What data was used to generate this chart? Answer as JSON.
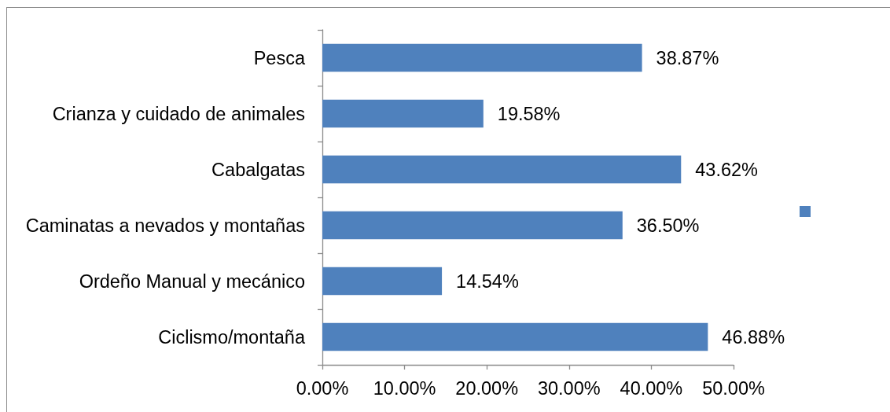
{
  "chart_data": {
    "type": "bar",
    "orientation": "horizontal",
    "categories": [
      "Pesca",
      "Crianza y cuidado de animales",
      "Cabalgatas",
      "Caminatas a nevados y montañas",
      "Ordeño Manual y mecánico",
      "Ciclismo/montaña"
    ],
    "series": [
      {
        "color": "#4f81bd",
        "values": [
          38.87,
          19.58,
          43.62,
          36.5,
          14.54,
          46.88
        ],
        "value_labels": [
          "38.87%",
          "19.58%",
          "43.62%",
          "36.50%",
          "14.54%",
          "46.88%"
        ]
      }
    ],
    "xlim": [
      0,
      50
    ],
    "xticks": [
      {
        "value": 0,
        "label": "0.00%"
      },
      {
        "value": 10,
        "label": "10.00%"
      },
      {
        "value": 20,
        "label": "20.00%"
      },
      {
        "value": 30,
        "label": "30.00%"
      },
      {
        "value": 40,
        "label": "40.00%"
      },
      {
        "value": 50,
        "label": "50.00%"
      }
    ]
  }
}
